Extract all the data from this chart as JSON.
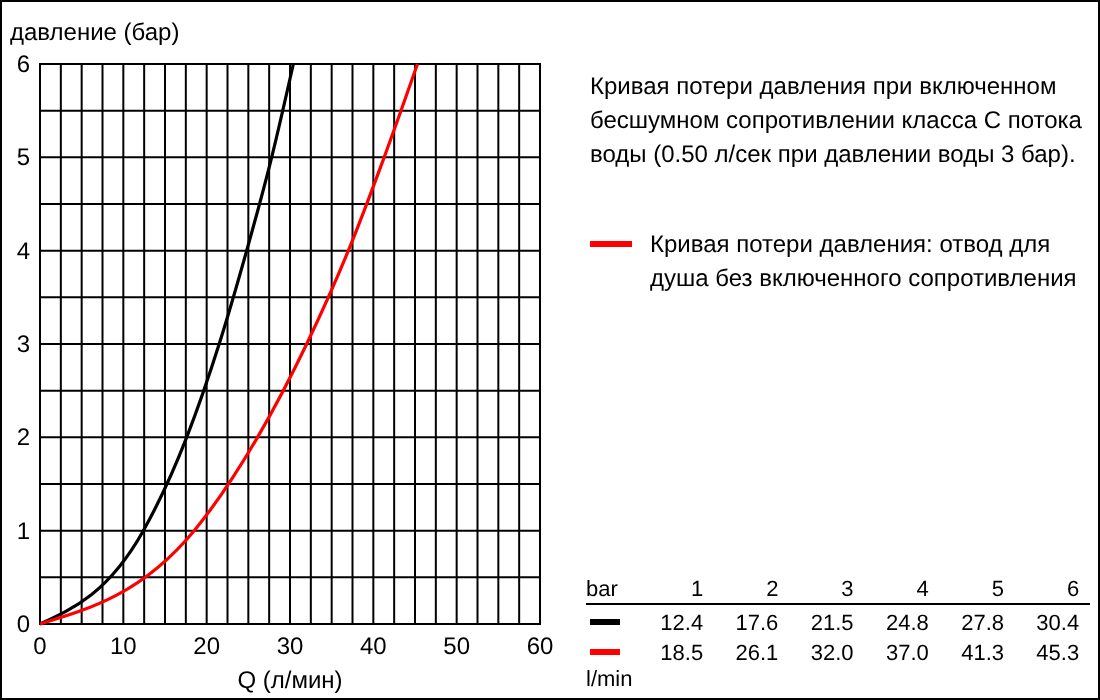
{
  "chart_data": {
    "type": "line",
    "xlabel": "Q (л/мин)",
    "ylabel": "давление (бар)",
    "xlim": [
      0,
      60
    ],
    "ylim": [
      0,
      6
    ],
    "xticks": [
      0,
      {
        "value": 2.5,
        "label": null
      },
      {
        "value": 5,
        "label": null
      },
      {
        "value": 7.5,
        "label": null
      },
      10,
      {
        "value": 12.5,
        "label": null
      },
      {
        "value": 15,
        "label": null
      },
      {
        "value": 17.5,
        "label": null
      },
      20,
      {
        "value": 22.5,
        "label": null
      },
      {
        "value": 25,
        "label": null
      },
      {
        "value": 27.5,
        "label": null
      },
      30,
      {
        "value": 32.5,
        "label": null
      },
      {
        "value": 35,
        "label": null
      },
      {
        "value": 37.5,
        "label": null
      },
      40,
      {
        "value": 42.5,
        "label": null
      },
      {
        "value": 45,
        "label": null
      },
      {
        "value": 47.5,
        "label": null
      },
      50,
      {
        "value": 52.5,
        "label": null
      },
      {
        "value": 55,
        "label": null
      },
      {
        "value": 57.5,
        "label": null
      },
      60
    ],
    "yticks": [
      0,
      {
        "value": 0.5,
        "label": null
      },
      1,
      {
        "value": 1.5,
        "label": null
      },
      2,
      {
        "value": 2.5,
        "label": null
      },
      3,
      {
        "value": 3.5,
        "label": null
      },
      4,
      {
        "value": 4.5,
        "label": null
      },
      5,
      {
        "value": 5.5,
        "label": null
      },
      6
    ],
    "grid": true,
    "legend": "right",
    "marker": "none",
    "series": [
      {
        "color": "#000000",
        "x": [
          0,
          12.4,
          17.6,
          21.5,
          24.8,
          27.8,
          30.4
        ],
        "values": [
          0,
          1,
          2,
          3,
          4,
          5,
          6
        ]
      },
      {
        "name": "Кривая потери давления: отвод для душа без включенного сопротивления",
        "color": "#ff0000",
        "x": [
          0,
          18.5,
          26.1,
          32.0,
          37.0,
          41.3,
          45.3
        ],
        "values": [
          0,
          1,
          2,
          3,
          4,
          5,
          6
        ]
      }
    ],
    "annotations": [
      "Кривая потери давления при включенном бесшумном сопротивлении класса С потока воды (0.50 л/сек при давлении воды 3 бар).",
      "bar",
      "1",
      "2",
      "3",
      "4",
      "5",
      "6",
      "12.4",
      "17.6",
      "21.5",
      "24.8",
      "27.8",
      "30.4",
      "18.5",
      "26.1",
      "32.0",
      "37.0",
      "41.3",
      "45.3",
      "l/min"
    ]
  }
}
